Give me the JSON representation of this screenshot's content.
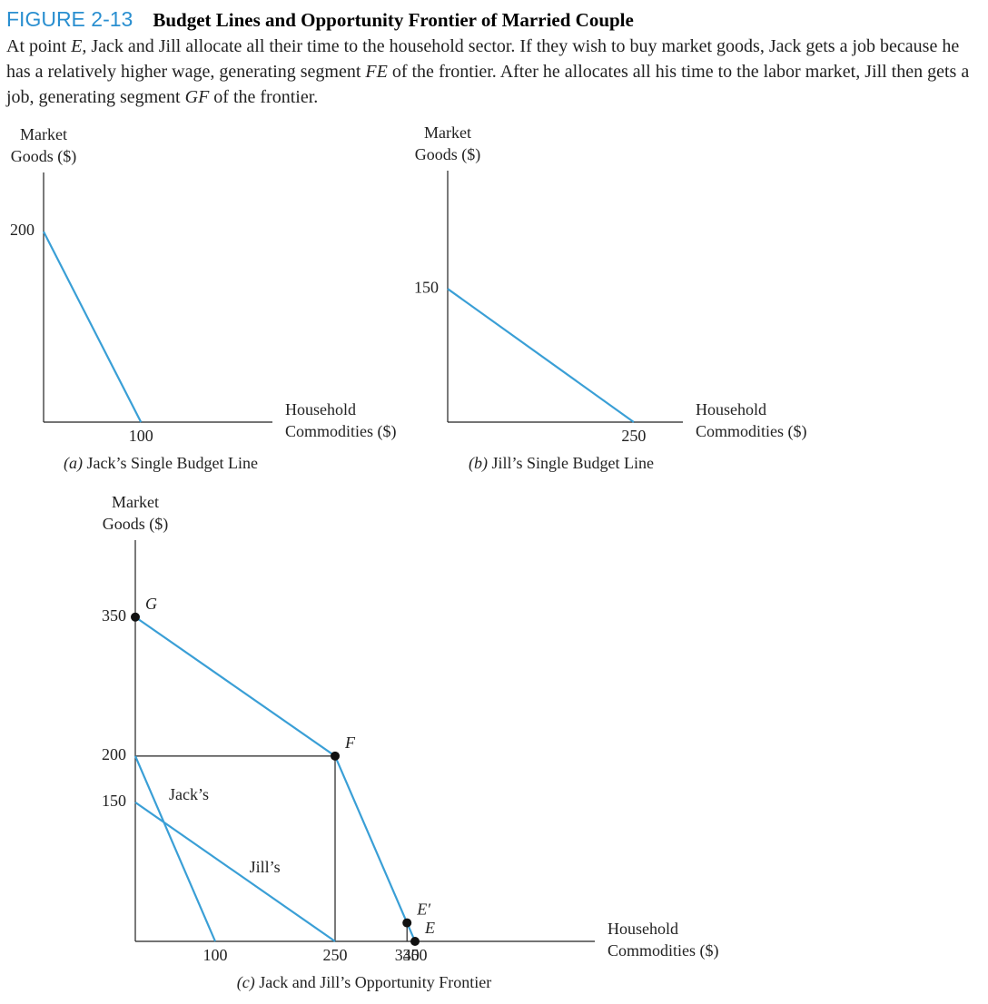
{
  "figure_label": "FIGURE 2-13",
  "figure_title": "Budget Lines and Opportunity Frontier of Married Couple",
  "caption": [
    {
      "text": "At point ",
      "italic": false
    },
    {
      "text": "E,",
      "italic": true
    },
    {
      "text": " Jack and Jill allocate all their time to the household sector. If they wish to buy market goods, Jack gets a job because he has a relatively higher wage, generating segment ",
      "italic": false
    },
    {
      "text": "FE",
      "italic": true
    },
    {
      "text": " of the frontier. After he allocates all his time to the labor market, Jill then gets a job, generating segment ",
      "italic": false
    },
    {
      "text": "GF",
      "italic": true
    },
    {
      "text": " of the frontier.",
      "italic": false
    }
  ],
  "chart_data": [
    {
      "type": "line",
      "label": "(a)",
      "title": "Jack’s Single Budget Line",
      "ylabel": [
        "Market",
        "Goods ($)"
      ],
      "xlabel": [
        "Household",
        "Commodities ($)"
      ],
      "xlim": [
        0,
        235
      ],
      "ylim": [
        0,
        262
      ],
      "xticks": [
        100
      ],
      "yticks": [
        200
      ],
      "series": [
        {
          "color": "#3a9fd6",
          "x": [
            0,
            100
          ],
          "values": [
            200,
            0
          ]
        }
      ]
    },
    {
      "type": "line",
      "label": "(b)",
      "title": "Jill’s Single Budget Line",
      "ylabel": [
        "Market",
        "Goods ($)"
      ],
      "xlabel": [
        "Household",
        "Commodities ($)"
      ],
      "xlim": [
        0,
        316
      ],
      "ylim": [
        0,
        283
      ],
      "xticks": [
        250
      ],
      "yticks": [
        150
      ],
      "series": [
        {
          "color": "#3a9fd6",
          "x": [
            0,
            250
          ],
          "values": [
            150,
            0
          ]
        }
      ]
    },
    {
      "type": "line",
      "label": "(c)",
      "title": "Jack and Jill’s Opportunity Frontier",
      "ylabel": [
        "Market",
        "Goods ($)"
      ],
      "xlabel": [
        "Household",
        "Commodities ($)"
      ],
      "xlim": [
        0,
        575
      ],
      "ylim": [
        0,
        433
      ],
      "xticks": [
        100,
        250,
        340,
        350
      ],
      "yticks": [
        150,
        200,
        350
      ],
      "series": [
        {
          "name": "Jack’s",
          "color": "#3a9fd6",
          "x": [
            0,
            100
          ],
          "values": [
            200,
            0
          ]
        },
        {
          "name": "Jill’s",
          "color": "#3a9fd6",
          "x": [
            0,
            250
          ],
          "values": [
            150,
            0
          ]
        },
        {
          "color": "#3a9fd6",
          "x": [
            0,
            250,
            340,
            350
          ],
          "values": [
            350,
            200,
            20,
            0
          ]
        }
      ],
      "points": [
        {
          "label": "G",
          "x": 0,
          "y": 350
        },
        {
          "label": "F",
          "x": 250,
          "y": 200,
          "drop": "xy"
        },
        {
          "label": "E′",
          "x": 340,
          "y": 20,
          "drop": "x"
        },
        {
          "label": "E",
          "x": 350,
          "y": 0
        }
      ]
    }
  ]
}
